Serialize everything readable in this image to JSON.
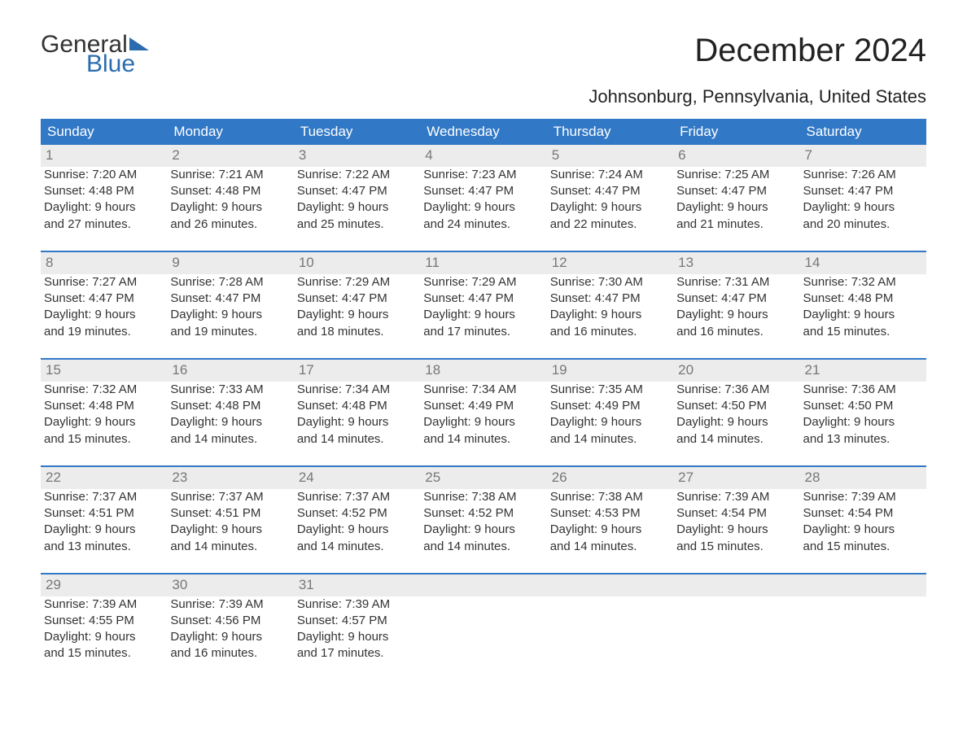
{
  "logo": {
    "word1": "General",
    "word2": "Blue"
  },
  "title": "December 2024",
  "location": "Johnsonburg, Pennsylvania, United States",
  "colors": {
    "header_bg": "#3178c6",
    "header_text": "#ffffff",
    "daynum_bg": "#ececec",
    "daynum_text": "#777777",
    "body_text": "#333333",
    "rule": "#3178c6",
    "logo_accent": "#2b6cb0"
  },
  "day_headers": [
    "Sunday",
    "Monday",
    "Tuesday",
    "Wednesday",
    "Thursday",
    "Friday",
    "Saturday"
  ],
  "weeks": [
    [
      {
        "n": "1",
        "sr": "Sunrise: 7:20 AM",
        "ss": "Sunset: 4:48 PM",
        "d1": "Daylight: 9 hours",
        "d2": "and 27 minutes."
      },
      {
        "n": "2",
        "sr": "Sunrise: 7:21 AM",
        "ss": "Sunset: 4:48 PM",
        "d1": "Daylight: 9 hours",
        "d2": "and 26 minutes."
      },
      {
        "n": "3",
        "sr": "Sunrise: 7:22 AM",
        "ss": "Sunset: 4:47 PM",
        "d1": "Daylight: 9 hours",
        "d2": "and 25 minutes."
      },
      {
        "n": "4",
        "sr": "Sunrise: 7:23 AM",
        "ss": "Sunset: 4:47 PM",
        "d1": "Daylight: 9 hours",
        "d2": "and 24 minutes."
      },
      {
        "n": "5",
        "sr": "Sunrise: 7:24 AM",
        "ss": "Sunset: 4:47 PM",
        "d1": "Daylight: 9 hours",
        "d2": "and 22 minutes."
      },
      {
        "n": "6",
        "sr": "Sunrise: 7:25 AM",
        "ss": "Sunset: 4:47 PM",
        "d1": "Daylight: 9 hours",
        "d2": "and 21 minutes."
      },
      {
        "n": "7",
        "sr": "Sunrise: 7:26 AM",
        "ss": "Sunset: 4:47 PM",
        "d1": "Daylight: 9 hours",
        "d2": "and 20 minutes."
      }
    ],
    [
      {
        "n": "8",
        "sr": "Sunrise: 7:27 AM",
        "ss": "Sunset: 4:47 PM",
        "d1": "Daylight: 9 hours",
        "d2": "and 19 minutes."
      },
      {
        "n": "9",
        "sr": "Sunrise: 7:28 AM",
        "ss": "Sunset: 4:47 PM",
        "d1": "Daylight: 9 hours",
        "d2": "and 19 minutes."
      },
      {
        "n": "10",
        "sr": "Sunrise: 7:29 AM",
        "ss": "Sunset: 4:47 PM",
        "d1": "Daylight: 9 hours",
        "d2": "and 18 minutes."
      },
      {
        "n": "11",
        "sr": "Sunrise: 7:29 AM",
        "ss": "Sunset: 4:47 PM",
        "d1": "Daylight: 9 hours",
        "d2": "and 17 minutes."
      },
      {
        "n": "12",
        "sr": "Sunrise: 7:30 AM",
        "ss": "Sunset: 4:47 PM",
        "d1": "Daylight: 9 hours",
        "d2": "and 16 minutes."
      },
      {
        "n": "13",
        "sr": "Sunrise: 7:31 AM",
        "ss": "Sunset: 4:47 PM",
        "d1": "Daylight: 9 hours",
        "d2": "and 16 minutes."
      },
      {
        "n": "14",
        "sr": "Sunrise: 7:32 AM",
        "ss": "Sunset: 4:48 PM",
        "d1": "Daylight: 9 hours",
        "d2": "and 15 minutes."
      }
    ],
    [
      {
        "n": "15",
        "sr": "Sunrise: 7:32 AM",
        "ss": "Sunset: 4:48 PM",
        "d1": "Daylight: 9 hours",
        "d2": "and 15 minutes."
      },
      {
        "n": "16",
        "sr": "Sunrise: 7:33 AM",
        "ss": "Sunset: 4:48 PM",
        "d1": "Daylight: 9 hours",
        "d2": "and 14 minutes."
      },
      {
        "n": "17",
        "sr": "Sunrise: 7:34 AM",
        "ss": "Sunset: 4:48 PM",
        "d1": "Daylight: 9 hours",
        "d2": "and 14 minutes."
      },
      {
        "n": "18",
        "sr": "Sunrise: 7:34 AM",
        "ss": "Sunset: 4:49 PM",
        "d1": "Daylight: 9 hours",
        "d2": "and 14 minutes."
      },
      {
        "n": "19",
        "sr": "Sunrise: 7:35 AM",
        "ss": "Sunset: 4:49 PM",
        "d1": "Daylight: 9 hours",
        "d2": "and 14 minutes."
      },
      {
        "n": "20",
        "sr": "Sunrise: 7:36 AM",
        "ss": "Sunset: 4:50 PM",
        "d1": "Daylight: 9 hours",
        "d2": "and 14 minutes."
      },
      {
        "n": "21",
        "sr": "Sunrise: 7:36 AM",
        "ss": "Sunset: 4:50 PM",
        "d1": "Daylight: 9 hours",
        "d2": "and 13 minutes."
      }
    ],
    [
      {
        "n": "22",
        "sr": "Sunrise: 7:37 AM",
        "ss": "Sunset: 4:51 PM",
        "d1": "Daylight: 9 hours",
        "d2": "and 13 minutes."
      },
      {
        "n": "23",
        "sr": "Sunrise: 7:37 AM",
        "ss": "Sunset: 4:51 PM",
        "d1": "Daylight: 9 hours",
        "d2": "and 14 minutes."
      },
      {
        "n": "24",
        "sr": "Sunrise: 7:37 AM",
        "ss": "Sunset: 4:52 PM",
        "d1": "Daylight: 9 hours",
        "d2": "and 14 minutes."
      },
      {
        "n": "25",
        "sr": "Sunrise: 7:38 AM",
        "ss": "Sunset: 4:52 PM",
        "d1": "Daylight: 9 hours",
        "d2": "and 14 minutes."
      },
      {
        "n": "26",
        "sr": "Sunrise: 7:38 AM",
        "ss": "Sunset: 4:53 PM",
        "d1": "Daylight: 9 hours",
        "d2": "and 14 minutes."
      },
      {
        "n": "27",
        "sr": "Sunrise: 7:39 AM",
        "ss": "Sunset: 4:54 PM",
        "d1": "Daylight: 9 hours",
        "d2": "and 15 minutes."
      },
      {
        "n": "28",
        "sr": "Sunrise: 7:39 AM",
        "ss": "Sunset: 4:54 PM",
        "d1": "Daylight: 9 hours",
        "d2": "and 15 minutes."
      }
    ],
    [
      {
        "n": "29",
        "sr": "Sunrise: 7:39 AM",
        "ss": "Sunset: 4:55 PM",
        "d1": "Daylight: 9 hours",
        "d2": "and 15 minutes."
      },
      {
        "n": "30",
        "sr": "Sunrise: 7:39 AM",
        "ss": "Sunset: 4:56 PM",
        "d1": "Daylight: 9 hours",
        "d2": "and 16 minutes."
      },
      {
        "n": "31",
        "sr": "Sunrise: 7:39 AM",
        "ss": "Sunset: 4:57 PM",
        "d1": "Daylight: 9 hours",
        "d2": "and 17 minutes."
      },
      null,
      null,
      null,
      null
    ]
  ]
}
